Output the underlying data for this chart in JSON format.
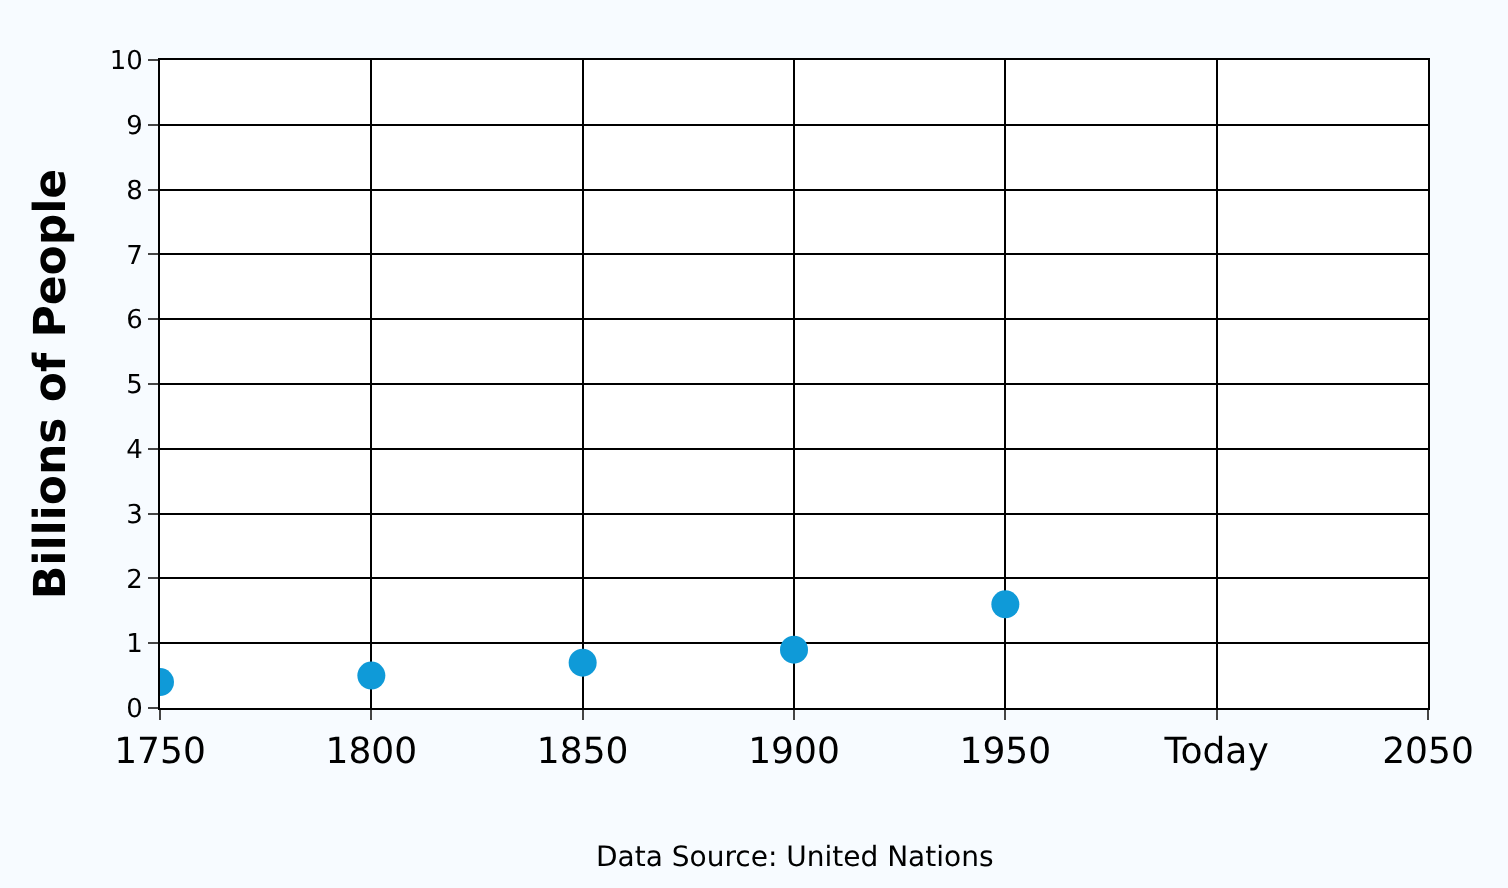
{
  "chart_data": {
    "type": "scatter",
    "ylabel": "Billions of People",
    "categories": [
      "1750",
      "1800",
      "1850",
      "1900",
      "1950",
      "Today",
      "2050"
    ],
    "series": [
      {
        "color": "#0f9ad8",
        "values": [
          0.4,
          0.5,
          0.7,
          0.9,
          1.6,
          null,
          null
        ]
      }
    ],
    "ylim": [
      0,
      10
    ],
    "yticks": [
      0,
      1,
      2,
      3,
      4,
      5,
      6,
      7,
      8,
      9,
      10
    ],
    "grid": true,
    "marker": "circle",
    "annotations": [
      "Data Source: United Nations"
    ]
  }
}
